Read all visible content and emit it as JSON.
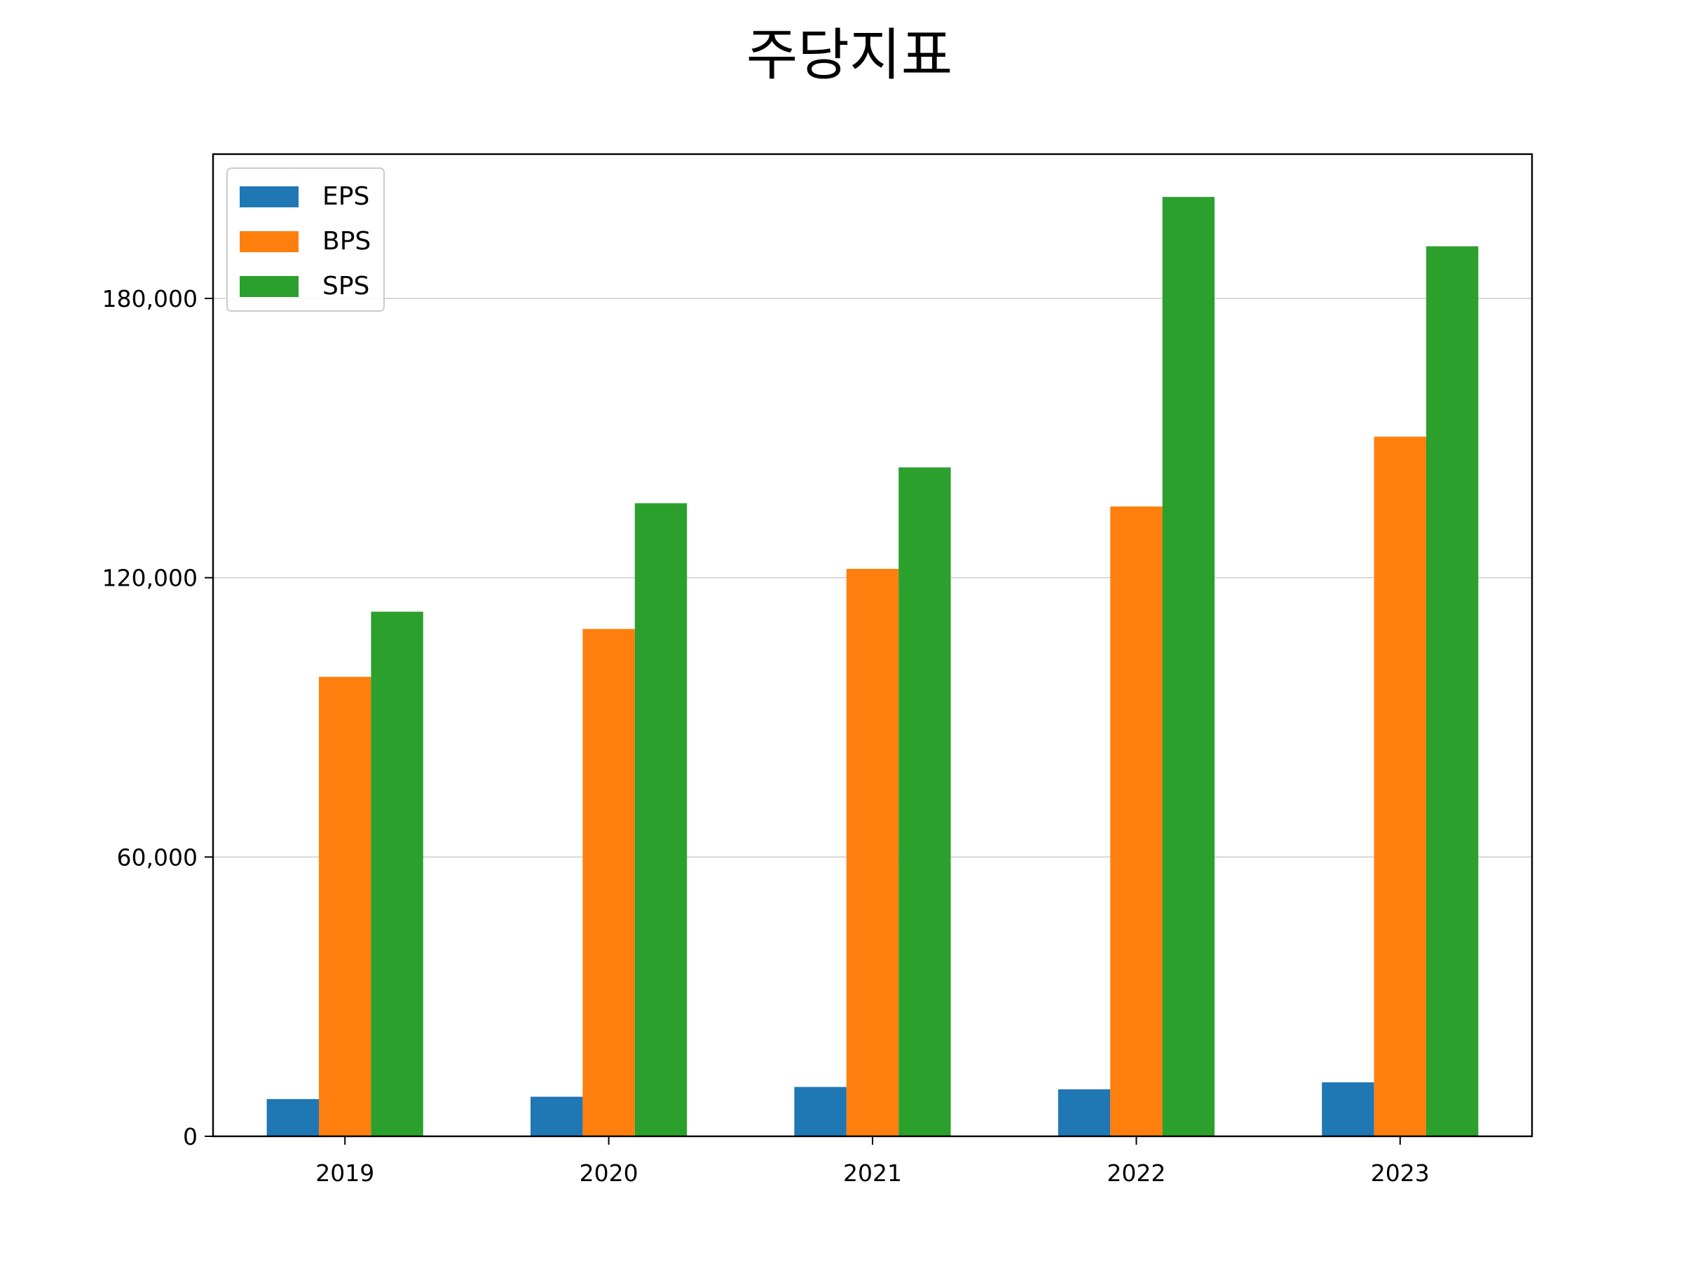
{
  "chart_data": {
    "type": "bar",
    "title": "주당지표",
    "xlabel": "",
    "ylabel": "",
    "categories": [
      "2019",
      "2020",
      "2021",
      "2022",
      "2023"
    ],
    "series": [
      {
        "name": "EPS",
        "color": "#1f77b4",
        "values": [
          8000,
          8500,
          10600,
          10100,
          11600
        ]
      },
      {
        "name": "BPS",
        "color": "#ff7f0e",
        "values": [
          98700,
          109000,
          121900,
          135300,
          150300
        ]
      },
      {
        "name": "SPS",
        "color": "#2ca02c",
        "values": [
          112700,
          136000,
          143700,
          201800,
          191200
        ]
      }
    ],
    "ylim": [
      0,
      211000
    ],
    "yticks": [
      0,
      60000,
      120000,
      180000
    ],
    "ytick_labels": [
      "0",
      "60,000",
      "120,000",
      "180,000"
    ],
    "grid": "y",
    "legend_position": "upper-left"
  }
}
